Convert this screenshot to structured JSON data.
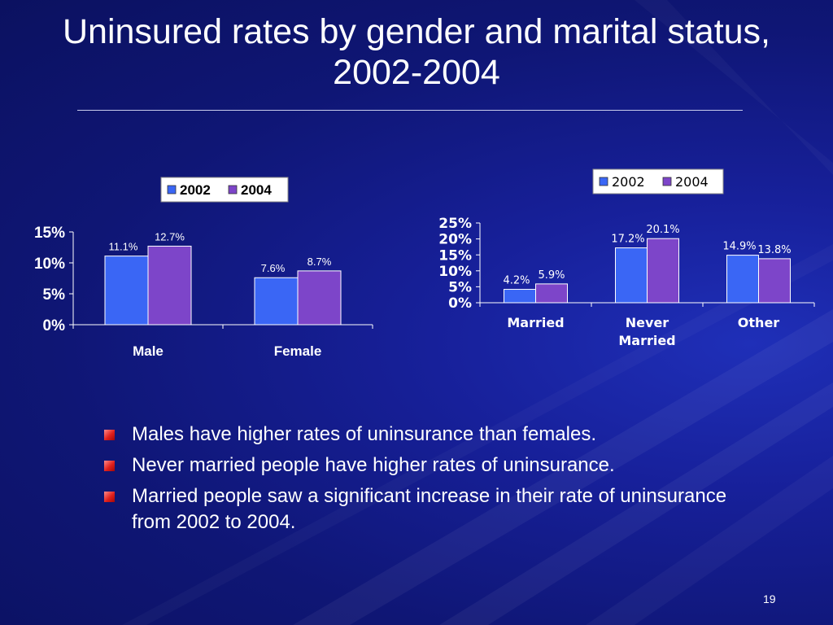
{
  "slide": {
    "title": "Uninsured rates by gender and marital status, 2002-2004",
    "page_number": "19"
  },
  "bullets": [
    "Males have higher rates of uninsurance than females.",
    "Never married people have higher rates of uninsurance.",
    "Married people saw a significant increase in their rate of uninsurance from 2002 to 2004."
  ],
  "colors": {
    "series_2002": "#3a66f5",
    "series_2004": "#7d45c9",
    "bullet": "#e0201c"
  },
  "chart_data": [
    {
      "type": "bar",
      "categories": [
        "Male",
        "Female"
      ],
      "series": [
        {
          "name": "2002",
          "values": [
            11.1,
            7.6
          ],
          "labels": [
            "11.1%",
            "7.6%"
          ]
        },
        {
          "name": "2004",
          "values": [
            12.7,
            8.7
          ],
          "labels": [
            "12.7%",
            "8.7%"
          ]
        }
      ],
      "yticks": [
        0,
        5,
        10,
        15
      ],
      "ytick_labels": [
        "0%",
        "5%",
        "10%",
        "15%"
      ],
      "ylim": [
        0,
        15
      ],
      "legend": "top",
      "grid": false
    },
    {
      "type": "bar",
      "categories": [
        "Married",
        "Never Married",
        "Other"
      ],
      "series": [
        {
          "name": "2002",
          "values": [
            4.2,
            17.2,
            14.9
          ],
          "labels": [
            "4.2%",
            "17.2%",
            "14.9%"
          ]
        },
        {
          "name": "2004",
          "values": [
            5.9,
            20.1,
            13.8
          ],
          "labels": [
            "5.9%",
            "20.1%",
            "13.8%"
          ]
        }
      ],
      "yticks": [
        0,
        5,
        10,
        15,
        20,
        25
      ],
      "ytick_labels": [
        "0%",
        "5%",
        "10%",
        "15%",
        "20%",
        "25%"
      ],
      "ylim": [
        0,
        25
      ],
      "legend": "top-right",
      "grid": false
    }
  ]
}
